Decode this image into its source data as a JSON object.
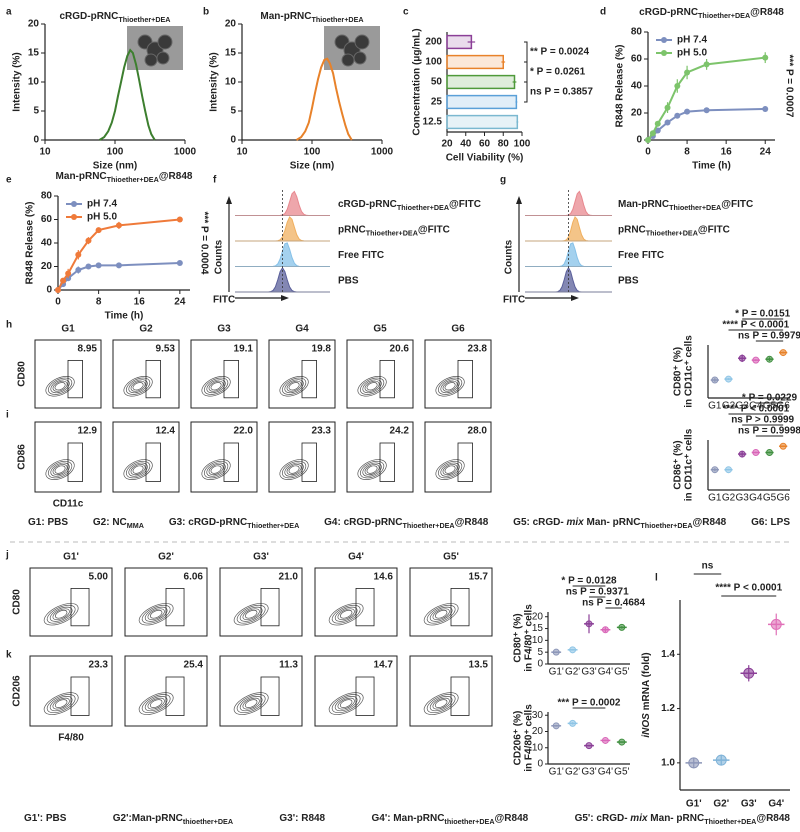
{
  "chart_data": [
    {
      "type": "line",
      "panel": "a",
      "title": [
        {
          "t": "cRGD-pRNC"
        },
        {
          "t": "Thioether+DEA",
          "style": "sub"
        }
      ],
      "xlabel": "Size (nm)",
      "ylabel": "Intensity (%)",
      "xlog": true,
      "xlim": [
        10,
        1000
      ],
      "xticks": [
        10,
        100,
        1000
      ],
      "ylim": [
        0,
        20
      ],
      "yticks": [
        0,
        5,
        10,
        15,
        20
      ],
      "inset": true,
      "x": [
        60,
        70,
        80,
        90,
        100,
        110,
        122,
        135,
        150,
        165,
        180,
        200,
        220,
        245,
        270,
        300,
        330,
        370
      ],
      "series": [
        {
          "color": "#3d7f2f",
          "values": [
            0,
            0.5,
            1.5,
            3,
            5,
            7.5,
            10,
            12.5,
            14.5,
            15.5,
            15,
            13,
            10.5,
            7.5,
            5,
            2.5,
            1,
            0
          ]
        }
      ]
    },
    {
      "type": "line",
      "panel": "b",
      "title": [
        {
          "t": "Man-pRNC"
        },
        {
          "t": "Thioether+DEA",
          "style": "sub"
        }
      ],
      "xlabel": "Size (nm)",
      "ylabel": "Intensity (%)",
      "xlog": true,
      "xlim": [
        10,
        1000
      ],
      "xticks": [
        10,
        100,
        1000
      ],
      "ylim": [
        0,
        20
      ],
      "yticks": [
        0,
        5,
        10,
        15,
        20
      ],
      "inset": true,
      "x": [
        60,
        70,
        80,
        90,
        100,
        110,
        122,
        135,
        150,
        165,
        180,
        200,
        220,
        245,
        270,
        300,
        330,
        370
      ],
      "series": [
        {
          "color": "#e8822a",
          "values": [
            0,
            0.5,
            1.5,
            3,
            5.5,
            8,
            10.5,
            12.5,
            13.8,
            14,
            13.2,
            11.5,
            9,
            6.5,
            4.5,
            2.5,
            1,
            0
          ]
        }
      ]
    },
    {
      "type": "bar",
      "orientation": "horizontal",
      "panel": "c",
      "xlabel": "Cell Viability (%)",
      "ylabel": "Concentration (μg/mL)",
      "categories": [
        "200",
        "100",
        "50",
        "25",
        "12.5"
      ],
      "values": [
        46,
        80,
        92,
        94,
        95
      ],
      "errors": [
        4,
        2,
        2,
        1,
        1
      ],
      "colors": [
        "#8b3f97",
        "#e8822a",
        "#4f9a3a",
        "#5aa0d8",
        "#7bb8d0"
      ],
      "xlim": [
        20,
        100
      ],
      "xticks": [
        20,
        40,
        60,
        80,
        100
      ],
      "annotations": [
        "** P = 0.0024",
        "* P = 0.0261",
        "ns P = 0.3857"
      ]
    },
    {
      "type": "line",
      "panel": "d",
      "title": [
        {
          "t": "cRGD-pRNC"
        },
        {
          "t": "Thioether+DEA",
          "style": "sub"
        },
        {
          "t": "@R848"
        }
      ],
      "xlabel": "Time (h)",
      "ylabel": "R848 Release (%)",
      "xlim": [
        0,
        26
      ],
      "xticks": [
        0,
        8,
        16,
        24
      ],
      "ylim": [
        0,
        80
      ],
      "yticks": [
        0,
        20,
        40,
        60,
        80
      ],
      "legend": "top-left",
      "annotation": "*** P = 0.0007",
      "x": [
        0,
        1,
        2,
        4,
        6,
        8,
        12,
        24
      ],
      "series": [
        {
          "name": "pH 7.4",
          "color": "#7d8fbf",
          "values": [
            0,
            3,
            7,
            13,
            18,
            21,
            22,
            23
          ],
          "errors": [
            0,
            1,
            1,
            2,
            2,
            2,
            1,
            2
          ]
        },
        {
          "name": "pH 5.0",
          "color": "#7dc46b",
          "values": [
            0,
            5,
            12,
            24,
            40,
            50,
            56,
            61
          ],
          "errors": [
            0,
            2,
            2,
            4,
            5,
            5,
            4,
            4
          ]
        }
      ]
    },
    {
      "type": "line",
      "panel": "e",
      "title": [
        {
          "t": "Man-pRNC"
        },
        {
          "t": "Thioether+DEA",
          "style": "sub"
        },
        {
          "t": "@R848"
        }
      ],
      "xlabel": "Time (h)",
      "ylabel": "R848 Release (%)",
      "xlim": [
        0,
        26
      ],
      "xticks": [
        0,
        8,
        16,
        24
      ],
      "ylim": [
        0,
        80
      ],
      "yticks": [
        0,
        20,
        40,
        60,
        80
      ],
      "legend": "top-left",
      "annotation": "*** P = 0.0004",
      "x": [
        0,
        1,
        2,
        4,
        6,
        8,
        12,
        24
      ],
      "series": [
        {
          "name": "pH 7.4",
          "color": "#7d8fbf",
          "values": [
            0,
            5,
            10,
            17,
            20,
            21,
            21,
            23
          ],
          "errors": [
            0,
            2,
            2,
            3,
            2,
            1,
            1,
            2
          ]
        },
        {
          "name": "pH 5.0",
          "color": "#ef7a3a",
          "values": [
            0,
            8,
            14,
            30,
            42,
            51,
            55,
            60
          ],
          "errors": [
            0,
            2,
            4,
            4,
            3,
            2,
            3,
            1
          ]
        }
      ]
    },
    {
      "type": "dot",
      "ylabel": "CD80⁺ (%)",
      "ylabel_line2": "in CD11c⁺ cells",
      "categories": [
        "G1",
        "G2",
        "G3",
        "G4",
        "G5",
        "G6"
      ],
      "colors": [
        "#8c96b8",
        "#8ec5e6",
        "#8b3f97",
        "#d966b8",
        "#3f8f3f",
        "#e8822a"
      ],
      "values": [
        9.5,
        10,
        21,
        20,
        20.5,
        24
      ],
      "errors": [
        1,
        0.5,
        2,
        0.5,
        1,
        0.5
      ],
      "ylim": [
        0,
        28
      ],
      "annotations": [
        "* P = 0.0151",
        "**** P < 0.0001",
        "ns P = 0.9979"
      ]
    },
    {
      "type": "dot",
      "ylabel": "CD86⁺ (%)",
      "ylabel_line2": "in CD11c⁺ cells",
      "categories": [
        "G1",
        "G2",
        "G3",
        "G4",
        "G5",
        "G6"
      ],
      "colors": [
        "#8c96b8",
        "#8ec5e6",
        "#8b3f97",
        "#d966b8",
        "#3f8f3f",
        "#e8822a"
      ],
      "values": [
        13,
        13,
        23,
        24,
        24,
        28
      ],
      "errors": [
        1,
        0.5,
        2,
        0.5,
        0.5,
        0.5
      ],
      "ylim": [
        0,
        32
      ],
      "annotations": [
        "* P = 0.0229",
        "**** P < 0.0001",
        "ns P > 0.9999",
        "ns P = 0.9998"
      ]
    },
    {
      "type": "dot",
      "ylabel": "CD80⁺ (%)",
      "ylabel_line2": "in F4/80⁺ cells",
      "categories": [
        "G1'",
        "G2'",
        "G3'",
        "G4'",
        "G5'"
      ],
      "colors": [
        "#8c96b8",
        "#8ec5e6",
        "#8b3f97",
        "#d966b8",
        "#3f8f3f"
      ],
      "values": [
        5,
        6,
        17,
        14.5,
        15.5
      ],
      "errors": [
        0.3,
        0.3,
        4,
        1,
        0.5
      ],
      "ylim": [
        0,
        22
      ],
      "yticks": [
        0,
        5,
        10,
        15,
        20
      ],
      "annotations": [
        "* P = 0.0128",
        "ns P = 0.9371",
        "ns P = 0.4684"
      ]
    },
    {
      "type": "dot",
      "ylabel": "CD206⁺ (%)",
      "ylabel_line2": "in F4/80⁺ cells",
      "categories": [
        "G1'",
        "G2'",
        "G3'",
        "G4'",
        "G5'"
      ],
      "colors": [
        "#8c96b8",
        "#8ec5e6",
        "#8b3f97",
        "#d966b8",
        "#3f8f3f"
      ],
      "values": [
        23.5,
        25,
        11.3,
        14.5,
        13.5
      ],
      "errors": [
        0.5,
        0.7,
        0.4,
        0.4,
        0.3
      ],
      "ylim": [
        0,
        32
      ],
      "yticks": [
        0,
        10,
        20,
        30
      ],
      "annotations": [
        "*** P = 0.0002"
      ]
    },
    {
      "type": "dot",
      "panel": "l",
      "ylabel": [
        {
          "t": "iNOS",
          "style": "italic"
        },
        {
          "t": " mRNA (fold)"
        }
      ],
      "categories": [
        "G1'",
        "G2'",
        "G3'",
        "G4'"
      ],
      "colors": [
        "#8c96b8",
        "#7fb3d8",
        "#8b3f97",
        "#e070b8"
      ],
      "values": [
        1.0,
        1.01,
        1.33,
        1.51
      ],
      "errors": [
        0.02,
        0.02,
        0.03,
        0.04
      ],
      "ylim": [
        0.9,
        1.6
      ],
      "yticks": [
        {
          "value": 1,
          "label": "1.0"
        },
        1.2,
        1.4
      ],
      "annotations": [
        "ns",
        "**** P < 0.0001"
      ]
    }
  ],
  "histograms": [
    {
      "panel": "f",
      "ylabel": "Counts",
      "xlabel": "FITC",
      "colors": [
        "#e8888f",
        "#f0b060",
        "#86c1e8",
        "#5a5f9a"
      ],
      "labels": [
        [
          {
            "t": "cRGD-pRNC"
          },
          {
            "t": "Thioether+DEA",
            "style": "sub"
          },
          {
            "t": "@FITC"
          }
        ],
        [
          {
            "t": "pRNC"
          },
          {
            "t": "Thioether+DEA",
            "style": "sub"
          },
          {
            "t": "@FITC"
          }
        ],
        [
          {
            "t": "Free FITC"
          }
        ],
        [
          {
            "t": "PBS"
          }
        ]
      ]
    },
    {
      "panel": "g",
      "ylabel": "Counts",
      "xlabel": "FITC",
      "colors": [
        "#e8888f",
        "#f0b060",
        "#86c1e8",
        "#5a5f9a"
      ],
      "labels": [
        [
          {
            "t": "Man-pRNC"
          },
          {
            "t": "Thioether+DEA",
            "style": "sub"
          },
          {
            "t": "@FITC"
          }
        ],
        [
          {
            "t": "pRNC"
          },
          {
            "t": "Thioether+DEA",
            "style": "sub"
          },
          {
            "t": "@FITC"
          }
        ],
        [
          {
            "t": "Free FITC"
          }
        ],
        [
          {
            "t": "PBS"
          }
        ]
      ]
    }
  ],
  "flow_panels": [
    {
      "panel": "h",
      "groups": [
        "G1",
        "G2",
        "G3",
        "G4",
        "G5",
        "G6"
      ],
      "group_colors": [
        "#8c96b8",
        "#8ec5e6",
        "#8b3f97",
        "#d966b8",
        "#3f8f3f",
        "#e8822a"
      ],
      "gates": [
        "8.95",
        "9.53",
        "19.1",
        "19.8",
        "20.6",
        "23.8"
      ],
      "ylabel": "CD80"
    },
    {
      "panel": "i",
      "gates": [
        "12.9",
        "12.4",
        "22.0",
        "23.3",
        "24.2",
        "28.0"
      ],
      "ylabel": "CD86",
      "xlabel": "CD11c"
    },
    {
      "panel": "j",
      "groups": [
        "G1'",
        "G2'",
        "G3'",
        "G4'",
        "G5'"
      ],
      "group_colors": [
        "#8c96b8",
        "#8ec5e6",
        "#8b3f97",
        "#d966b8",
        "#3f8f3f"
      ],
      "gates": [
        "5.00",
        "6.06",
        "21.0",
        "14.6",
        "15.7"
      ],
      "ylabel": "CD80"
    },
    {
      "panel": "k",
      "gates": [
        "23.3",
        "25.4",
        "11.3",
        "14.7",
        "13.5"
      ],
      "ylabel": "CD206",
      "xlabel": "F4/80"
    }
  ],
  "legend_top": [
    {
      "color": "#8c96b8",
      "parts": [
        {
          "t": "G1: PBS"
        }
      ]
    },
    {
      "color": "#8ec5e6",
      "parts": [
        {
          "t": "G2: NC"
        },
        {
          "t": "MMA",
          "style": "sub"
        }
      ]
    },
    {
      "color": "#8b3f97",
      "parts": [
        {
          "t": "G3: cRGD-pRNC"
        },
        {
          "t": "Thioether+DEA",
          "style": "sub"
        }
      ]
    },
    {
      "color": "#d966b8",
      "parts": [
        {
          "t": "G4: cRGD-pRNC"
        },
        {
          "t": "Thioether+DEA",
          "style": "sub"
        },
        {
          "t": "@R848"
        }
      ]
    },
    {
      "color": "#3f8f3f",
      "parts": [
        {
          "t": "G5: cRGD- "
        },
        {
          "t": "mix",
          "style": "italic"
        },
        {
          "t": " Man- pRNC"
        },
        {
          "t": "Thioether+DEA",
          "style": "sub"
        },
        {
          "t": "@R848"
        }
      ]
    },
    {
      "color": "#e8822a",
      "parts": [
        {
          "t": "G6: LPS"
        }
      ]
    }
  ],
  "legend_bottom": [
    {
      "color": "#8c96b8",
      "parts": [
        {
          "t": "G1': PBS"
        }
      ]
    },
    {
      "color": "#8ec5e6",
      "parts": [
        {
          "t": "G2':Man-pRNC"
        },
        {
          "t": "thioether+DEA",
          "style": "sub"
        }
      ]
    },
    {
      "color": "#8b3f97",
      "parts": [
        {
          "t": "G3': R848"
        }
      ]
    },
    {
      "color": "#d966b8",
      "parts": [
        {
          "t": "G4': Man-pRNC"
        },
        {
          "t": "thioether+DEA",
          "style": "sub"
        },
        {
          "t": "@R848"
        }
      ]
    },
    {
      "color": "#3f8f3f",
      "parts": [
        {
          "t": "G5': cRGD- "
        },
        {
          "t": "mix",
          "style": "italic"
        },
        {
          "t": " Man- pRNC"
        },
        {
          "t": "Thioether+DEA",
          "style": "sub"
        },
        {
          "t": "@R848"
        }
      ]
    }
  ]
}
